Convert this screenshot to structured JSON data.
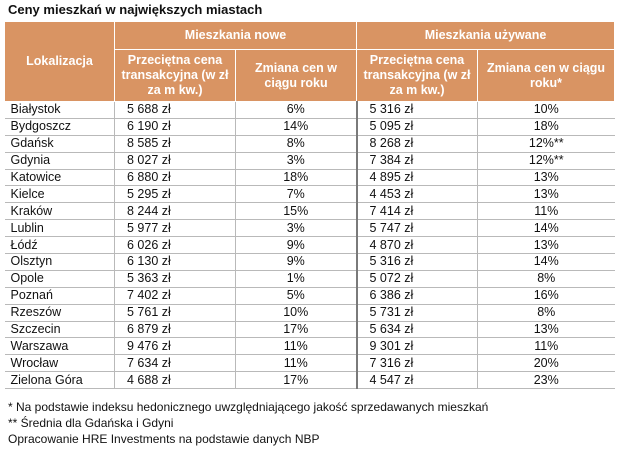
{
  "title": "Ceny mieszkań w największych miastach",
  "header": {
    "location": "Lokalizacja",
    "group_new": "Mieszkania nowe",
    "group_used": "Mieszkania używane",
    "new_price": "Przeciętna cena transakcyjna (w zł za m kw.)",
    "new_change": "Zmiana cen w ciągu roku",
    "used_price": "Przeciętna cena transakcyjna (w zł za m kw.)",
    "used_change": "Zmiana cen w ciągu roku*"
  },
  "rows": [
    {
      "city": "Białystok",
      "new_price": "5 688 zł",
      "new_change": "6%",
      "used_price": "5 316 zł",
      "used_change": "10%"
    },
    {
      "city": "Bydgoszcz",
      "new_price": "6 190 zł",
      "new_change": "14%",
      "used_price": "5 095 zł",
      "used_change": "18%"
    },
    {
      "city": "Gdańsk",
      "new_price": "8 585 zł",
      "new_change": "8%",
      "used_price": "8 268 zł",
      "used_change": "12%**"
    },
    {
      "city": "Gdynia",
      "new_price": "8 027 zł",
      "new_change": "3%",
      "used_price": "7 384 zł",
      "used_change": "12%**"
    },
    {
      "city": "Katowice",
      "new_price": "6 880 zł",
      "new_change": "18%",
      "used_price": "4 895 zł",
      "used_change": "13%"
    },
    {
      "city": "Kielce",
      "new_price": "5 295 zł",
      "new_change": "7%",
      "used_price": "4 453 zł",
      "used_change": "13%"
    },
    {
      "city": "Kraków",
      "new_price": "8 244 zł",
      "new_change": "15%",
      "used_price": "7 414 zł",
      "used_change": "11%"
    },
    {
      "city": "Lublin",
      "new_price": "5 977 zł",
      "new_change": "3%",
      "used_price": "5 747 zł",
      "used_change": "14%"
    },
    {
      "city": "Łódź",
      "new_price": "6 026 zł",
      "new_change": "9%",
      "used_price": "4 870 zł",
      "used_change": "13%"
    },
    {
      "city": "Olsztyn",
      "new_price": "6 130 zł",
      "new_change": "9%",
      "used_price": "5 316 zł",
      "used_change": "14%"
    },
    {
      "city": "Opole",
      "new_price": "5 363 zł",
      "new_change": "1%",
      "used_price": "5 072 zł",
      "used_change": "8%"
    },
    {
      "city": "Poznań",
      "new_price": "7 402 zł",
      "new_change": "5%",
      "used_price": "6 386 zł",
      "used_change": "16%"
    },
    {
      "city": "Rzeszów",
      "new_price": "5 761 zł",
      "new_change": "10%",
      "used_price": "5 731 zł",
      "used_change": "8%"
    },
    {
      "city": "Szczecin",
      "new_price": "6 879 zł",
      "new_change": "17%",
      "used_price": "5 634 zł",
      "used_change": "13%"
    },
    {
      "city": "Warszawa",
      "new_price": "9 476 zł",
      "new_change": "11%",
      "used_price": "9 301 zł",
      "used_change": "11%"
    },
    {
      "city": "Wrocław",
      "new_price": "7 634 zł",
      "new_change": "11%",
      "used_price": "7 316 zł",
      "used_change": "20%"
    },
    {
      "city": "Zielona Góra",
      "new_price": "4 688 zł",
      "new_change": "17%",
      "used_price": "4 547 zł",
      "used_change": "23%"
    }
  ],
  "notes": [
    "* Na podstawie indeksu hedonicznego uwzględniającego jakość sprzedawanych mieszkań",
    "** Średnia dla Gdańska i Gdyni",
    "Opracowanie HRE Investments na podstawie danych NBP"
  ],
  "colors": {
    "header_bg": "#d99463",
    "header_text": "#ffffff",
    "grid": "#b9b9b9"
  }
}
